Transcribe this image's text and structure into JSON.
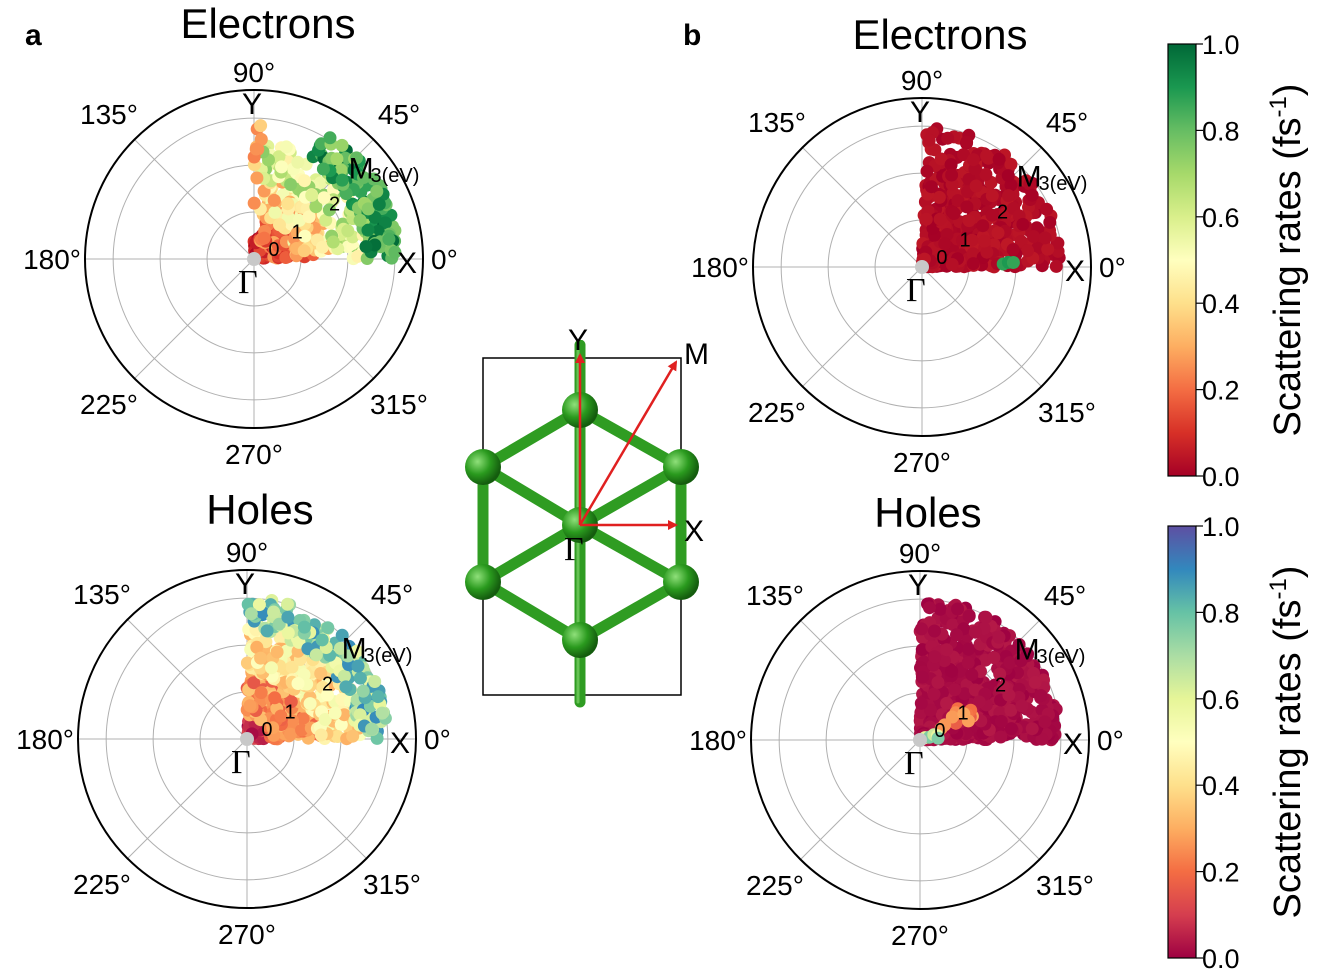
{
  "panel_labels": [
    "a",
    "b"
  ],
  "colorbars": [
    {
      "id": "electron",
      "colormap": "RdYlGn",
      "stops": [
        "#a50026",
        "#d73027",
        "#f46d43",
        "#fdae61",
        "#fee08b",
        "#ffffbf",
        "#d9ef8b",
        "#a6d96a",
        "#66bd63",
        "#1a9850",
        "#006837"
      ],
      "ticks": [
        "0.0",
        "0.2",
        "0.4",
        "0.6",
        "0.8",
        "1.0"
      ],
      "label": "Scattering rates (fs",
      "label_sup": "-1",
      "label_close": ")"
    },
    {
      "id": "hole",
      "colormap": "Spectral",
      "stops": [
        "#9e0142",
        "#d53e4f",
        "#f46d43",
        "#fdae61",
        "#fee08b",
        "#ffffbf",
        "#e6f598",
        "#abdda4",
        "#66c2a5",
        "#3288bd",
        "#5e4fa2"
      ],
      "ticks": [
        "0.0",
        "0.2",
        "0.4",
        "0.6",
        "0.8",
        "1.0"
      ],
      "label": "Scattering rates (fs",
      "label_sup": "-1",
      "label_close": ")"
    }
  ],
  "lattice": {
    "labels": {
      "y": "Y",
      "m": "M",
      "x": "X",
      "gamma": "Γ"
    },
    "atom_color": "#2a8c1e",
    "bond_color": "#3aa82a",
    "arrow_color": "#e02020"
  },
  "chart_data": [
    {
      "type": "scatter",
      "coordinate_system": "polar",
      "panel": "a",
      "carrier": "electrons",
      "title": "Electrons",
      "colormap": "RdYlGn",
      "color_range": [
        0.0,
        1.0
      ],
      "angle_labels": [
        "0°",
        "45°",
        "90°",
        "135°",
        "180°",
        "225°",
        "270°",
        "315°"
      ],
      "radial_ticks": [
        "0",
        "1",
        "2",
        "3(eV)"
      ],
      "rlim": [
        0,
        3.6
      ],
      "symmetry_points": [
        "Γ",
        "X",
        "M",
        "Y"
      ],
      "groups": [
        {
          "theta": [
            5,
            90
          ],
          "r": [
            0.1,
            0.5
          ],
          "n": 70,
          "rate": [
            0.0,
            0.15
          ]
        },
        {
          "theta": [
            2,
            75
          ],
          "r": [
            0.4,
            1.3
          ],
          "n": 150,
          "rate": [
            0.05,
            0.3
          ]
        },
        {
          "theta": [
            5,
            85
          ],
          "r": [
            0.9,
            1.8
          ],
          "n": 110,
          "rate": [
            0.25,
            0.55
          ]
        },
        {
          "theta": [
            0,
            88
          ],
          "r": [
            1.7,
            2.5
          ],
          "n": 110,
          "rate": [
            0.45,
            0.75
          ]
        },
        {
          "theta": [
            0,
            60
          ],
          "r": [
            2.4,
            3.1
          ],
          "n": 120,
          "rate": [
            0.7,
            1.0
          ]
        },
        {
          "theta": [
            86,
            90
          ],
          "r": [
            1.0,
            2.9
          ],
          "n": 10,
          "rate": [
            0.2,
            0.4
          ]
        }
      ]
    },
    {
      "type": "scatter",
      "coordinate_system": "polar",
      "panel": "a",
      "carrier": "holes",
      "title": "Holes",
      "colormap": "Spectral",
      "color_range": [
        0.0,
        1.0
      ],
      "angle_labels": [
        "0°",
        "45°",
        "90°",
        "135°",
        "180°",
        "225°",
        "270°",
        "315°"
      ],
      "radial_ticks": [
        "0",
        "1",
        "2",
        "3(eV)"
      ],
      "rlim": [
        0,
        3.6
      ],
      "symmetry_points": [
        "Γ",
        "X",
        "M",
        "Y"
      ],
      "groups": [
        {
          "theta": [
            0,
            90
          ],
          "r": [
            0.1,
            0.6
          ],
          "n": 60,
          "rate": [
            0.0,
            0.15
          ]
        },
        {
          "theta": [
            0,
            90
          ],
          "r": [
            0.5,
            1.6
          ],
          "n": 220,
          "rate": [
            0.15,
            0.35
          ]
        },
        {
          "theta": [
            0,
            90
          ],
          "r": [
            1.4,
            2.5
          ],
          "n": 200,
          "rate": [
            0.3,
            0.55
          ]
        },
        {
          "theta": [
            0,
            90
          ],
          "r": [
            2.3,
            3.0
          ],
          "n": 160,
          "rate": [
            0.55,
            0.9
          ]
        }
      ]
    },
    {
      "type": "scatter",
      "coordinate_system": "polar",
      "panel": "b",
      "carrier": "electrons",
      "title": "Electrons",
      "colormap": "RdYlGn",
      "color_range": [
        0.0,
        1.0
      ],
      "angle_labels": [
        "0°",
        "45°",
        "90°",
        "135°",
        "180°",
        "225°",
        "270°",
        "315°"
      ],
      "radial_ticks": [
        "0",
        "1",
        "2",
        "3(eV)"
      ],
      "rlim": [
        0,
        3.6
      ],
      "symmetry_points": [
        "Γ",
        "X",
        "M",
        "Y"
      ],
      "groups": [
        {
          "theta": [
            0,
            88
          ],
          "r": [
            0.1,
            3.0
          ],
          "n": 520,
          "rate": [
            0.0,
            0.05
          ]
        },
        {
          "theta": [
            1,
            4
          ],
          "r": [
            1.5,
            2.0
          ],
          "n": 3,
          "rate": [
            0.85,
            0.9
          ]
        }
      ]
    },
    {
      "type": "scatter",
      "coordinate_system": "polar",
      "panel": "b",
      "carrier": "holes",
      "title": "Holes",
      "colormap": "Spectral",
      "color_range": [
        0.0,
        1.0
      ],
      "angle_labels": [
        "0°",
        "45°",
        "90°",
        "135°",
        "180°",
        "225°",
        "270°",
        "315°"
      ],
      "radial_ticks": [
        "0",
        "1",
        "2",
        "3(eV)"
      ],
      "rlim": [
        0,
        3.6
      ],
      "symmetry_points": [
        "Γ",
        "X",
        "M",
        "Y"
      ],
      "groups": [
        {
          "theta": [
            0,
            90
          ],
          "r": [
            0.1,
            3.0
          ],
          "n": 700,
          "rate": [
            0.0,
            0.04
          ]
        },
        {
          "theta": [
            20,
            45
          ],
          "r": [
            0.5,
            1.3
          ],
          "n": 14,
          "rate": [
            0.15,
            0.3
          ]
        },
        {
          "theta": [
            5,
            30
          ],
          "r": [
            0.1,
            0.4
          ],
          "n": 5,
          "rate": [
            0.5,
            0.9
          ]
        }
      ]
    }
  ]
}
